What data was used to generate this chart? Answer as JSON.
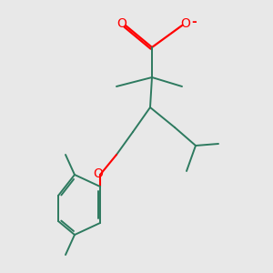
{
  "bg_color": "#e8e8e8",
  "bond_color": "#2d7a5f",
  "o_color": "#ff0000",
  "lw": 1.4,
  "figsize": [
    3.0,
    3.0
  ],
  "dpi": 100,
  "xlim": [
    0,
    300
  ],
  "ylim": [
    0,
    300
  ]
}
